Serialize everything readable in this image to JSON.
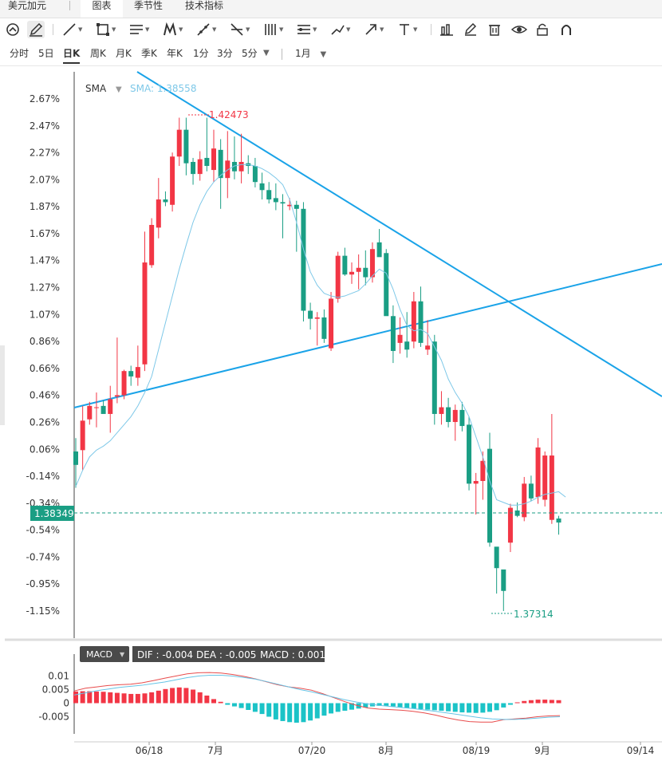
{
  "top_tabs": [
    "美元加元",
    "图表",
    "季节性",
    "技术指标"
  ],
  "periods": [
    "分时",
    "5日",
    "日K",
    "周K",
    "月K",
    "季K",
    "年K",
    "1分",
    "3分",
    "5分"
  ],
  "period_range": "1月",
  "sma": {
    "name": "SMA",
    "value_label": "SMA: 1.38558"
  },
  "macd": {
    "name": "MACD",
    "dif_label": "DIF : -0.004",
    "dea_label": "DEA : -0.005",
    "macd_label": "MACD : 0.001"
  },
  "colors": {
    "up": "#f23645",
    "down": "#1a9e84",
    "sma": "#7ec8e8",
    "trendline": "#1aa3e8",
    "dif": "#e84c4c",
    "dea": "#66c4e6",
    "current": "#1a9e84"
  },
  "chart_data": {
    "type": "candlestick",
    "y_axis": {
      "labels": [
        "2.67%",
        "2.47%",
        "2.27%",
        "2.07%",
        "1.87%",
        "1.67%",
        "1.47%",
        "1.27%",
        "1.07%",
        "0.86%",
        "0.66%",
        "0.46%",
        "0.26%",
        "0.06%",
        "-0.14%",
        "-0.34%",
        "-0.54%",
        "-0.74%",
        "-0.95%",
        "-1.15%"
      ],
      "min_pct": -1.15,
      "max_pct": 2.67,
      "base_price": 1.3604
    },
    "x_axis": {
      "labels": [
        "06/18",
        "7月",
        "07/20",
        "8月",
        "08/19",
        "9月",
        "09/14"
      ]
    },
    "current_price": "1.38349",
    "max_marker": {
      "label": "1.42473"
    },
    "min_marker": {
      "label": "1.37314"
    },
    "candles_pct": [
      {
        "o": 0.04,
        "h": 0.14,
        "l": -0.23,
        "c": -0.06
      },
      {
        "o": 0.05,
        "h": 0.38,
        "l": -0.1,
        "c": 0.27
      },
      {
        "o": 0.28,
        "h": 0.41,
        "l": 0.24,
        "c": 0.38
      },
      {
        "o": 0.37,
        "h": 0.48,
        "l": 0.22,
        "c": 0.37
      },
      {
        "o": 0.38,
        "h": 0.42,
        "l": 0.33,
        "c": 0.32
      },
      {
        "o": 0.32,
        "h": 0.53,
        "l": 0.18,
        "c": 0.43
      },
      {
        "o": 0.45,
        "h": 0.89,
        "l": 0.4,
        "c": 0.46
      },
      {
        "o": 0.46,
        "h": 0.65,
        "l": 0.43,
        "c": 0.64
      },
      {
        "o": 0.64,
        "h": 0.68,
        "l": 0.53,
        "c": 0.6
      },
      {
        "o": 0.59,
        "h": 0.83,
        "l": 0.53,
        "c": 0.67
      },
      {
        "o": 0.69,
        "h": 1.68,
        "l": 0.64,
        "c": 1.45
      },
      {
        "o": 1.43,
        "h": 1.78,
        "l": 1.41,
        "c": 1.73
      },
      {
        "o": 1.71,
        "h": 2.08,
        "l": 1.63,
        "c": 1.92
      },
      {
        "o": 1.92,
        "h": 1.98,
        "l": 1.87,
        "c": 1.9
      },
      {
        "o": 1.88,
        "h": 2.27,
        "l": 1.83,
        "c": 2.24
      },
      {
        "o": 2.24,
        "h": 2.53,
        "l": 2.17,
        "c": 2.44
      },
      {
        "o": 2.44,
        "h": 2.53,
        "l": 2.1,
        "c": 2.19
      },
      {
        "o": 2.2,
        "h": 2.23,
        "l": 2.03,
        "c": 2.11
      },
      {
        "o": 2.11,
        "h": 2.28,
        "l": 2.06,
        "c": 2.22
      },
      {
        "o": 2.23,
        "h": 2.53,
        "l": 2.13,
        "c": 2.17
      },
      {
        "o": 2.14,
        "h": 2.44,
        "l": 2.05,
        "c": 2.3
      },
      {
        "o": 2.29,
        "h": 2.37,
        "l": 1.85,
        "c": 2.08
      },
      {
        "o": 2.08,
        "h": 2.43,
        "l": 1.93,
        "c": 2.21
      },
      {
        "o": 2.2,
        "h": 2.39,
        "l": 2.07,
        "c": 2.13
      },
      {
        "o": 2.13,
        "h": 2.41,
        "l": 2.04,
        "c": 2.2
      },
      {
        "o": 2.19,
        "h": 2.25,
        "l": 2.11,
        "c": 2.17
      },
      {
        "o": 2.17,
        "h": 2.23,
        "l": 2.01,
        "c": 2.05
      },
      {
        "o": 2.04,
        "h": 2.12,
        "l": 1.92,
        "c": 1.99
      },
      {
        "o": 1.99,
        "h": 2.05,
        "l": 1.89,
        "c": 1.92
      },
      {
        "o": 1.93,
        "h": 2.04,
        "l": 1.84,
        "c": 1.9
      },
      {
        "o": 1.9,
        "h": 1.96,
        "l": 1.63,
        "c": 1.89
      },
      {
        "o": 1.87,
        "h": 1.93,
        "l": 1.84,
        "c": 1.88
      },
      {
        "o": 1.88,
        "h": 1.91,
        "l": 1.53,
        "c": 1.85
      },
      {
        "o": 1.85,
        "h": 1.9,
        "l": 1.01,
        "c": 1.09
      },
      {
        "o": 1.09,
        "h": 1.15,
        "l": 0.95,
        "c": 1.03
      },
      {
        "o": 1.03,
        "h": 1.08,
        "l": 0.83,
        "c": 1.04
      },
      {
        "o": 1.04,
        "h": 1.1,
        "l": 0.85,
        "c": 0.88
      },
      {
        "o": 0.81,
        "h": 1.23,
        "l": 0.79,
        "c": 1.18
      },
      {
        "o": 1.18,
        "h": 1.53,
        "l": 1.15,
        "c": 1.5
      },
      {
        "o": 1.5,
        "h": 1.56,
        "l": 1.35,
        "c": 1.36
      },
      {
        "o": 1.36,
        "h": 1.45,
        "l": 1.29,
        "c": 1.38
      },
      {
        "o": 1.38,
        "h": 1.51,
        "l": 1.25,
        "c": 1.41
      },
      {
        "o": 1.41,
        "h": 1.54,
        "l": 1.28,
        "c": 1.34
      },
      {
        "o": 1.34,
        "h": 1.6,
        "l": 1.3,
        "c": 1.55
      },
      {
        "o": 1.6,
        "h": 1.7,
        "l": 1.51,
        "c": 1.49
      },
      {
        "o": 1.52,
        "h": 1.55,
        "l": 1.37,
        "c": 1.05
      },
      {
        "o": 1.05,
        "h": 1.13,
        "l": 0.7,
        "c": 0.79
      },
      {
        "o": 0.85,
        "h": 1.04,
        "l": 0.77,
        "c": 0.91
      },
      {
        "o": 0.86,
        "h": 1.08,
        "l": 0.74,
        "c": 0.8
      },
      {
        "o": 0.86,
        "h": 1.23,
        "l": 0.81,
        "c": 1.16
      },
      {
        "o": 1.16,
        "h": 1.27,
        "l": 0.82,
        "c": 0.85
      },
      {
        "o": 0.8,
        "h": 1.02,
        "l": 0.76,
        "c": 0.83
      },
      {
        "o": 0.86,
        "h": 0.91,
        "l": 0.24,
        "c": 0.32
      },
      {
        "o": 0.32,
        "h": 0.49,
        "l": 0.24,
        "c": 0.37
      },
      {
        "o": 0.37,
        "h": 0.44,
        "l": 0.22,
        "c": 0.26
      },
      {
        "o": 0.26,
        "h": 0.39,
        "l": 0.12,
        "c": 0.35
      },
      {
        "o": 0.35,
        "h": 0.41,
        "l": 0.19,
        "c": 0.23
      },
      {
        "o": 0.24,
        "h": 0.3,
        "l": -0.25,
        "c": -0.2
      },
      {
        "o": -0.2,
        "h": -0.12,
        "l": -0.43,
        "c": -0.18
      },
      {
        "o": -0.18,
        "h": 0.04,
        "l": -0.32,
        "c": -0.03
      },
      {
        "o": 0.06,
        "h": 0.18,
        "l": -0.67,
        "c": -0.64
      },
      {
        "o": -0.67,
        "h": -0.68,
        "l": -1.02,
        "c": -0.83
      },
      {
        "o": -0.84,
        "h": -0.85,
        "l": -1.15,
        "c": -1.0
      },
      {
        "o": -0.64,
        "h": -0.35,
        "l": -0.71,
        "c": -0.38
      },
      {
        "o": -0.4,
        "h": -0.34,
        "l": -0.45,
        "c": -0.44
      },
      {
        "o": -0.45,
        "h": -0.15,
        "l": -0.48,
        "c": -0.2
      },
      {
        "o": -0.2,
        "h": -0.14,
        "l": -0.33,
        "c": -0.31
      },
      {
        "o": -0.3,
        "h": 0.14,
        "l": -0.35,
        "c": 0.07
      },
      {
        "o": -0.32,
        "h": 0.04,
        "l": -0.37,
        "c": 0.01
      },
      {
        "o": -0.47,
        "h": 0.32,
        "l": -0.5,
        "c": 0.01
      },
      {
        "o": -0.46,
        "h": -0.44,
        "l": -0.58,
        "c": -0.49
      }
    ],
    "sma_pct": [
      -0.22,
      -0.1,
      0.0,
      0.05,
      0.08,
      0.12,
      0.18,
      0.24,
      0.3,
      0.38,
      0.48,
      0.6,
      0.8,
      1.0,
      1.2,
      1.4,
      1.58,
      1.75,
      1.88,
      1.98,
      2.05,
      2.1,
      2.14,
      2.17,
      2.18,
      2.18,
      2.17,
      2.15,
      2.12,
      2.08,
      2.03,
      1.92,
      1.75,
      1.55,
      1.38,
      1.28,
      1.22,
      1.2,
      1.19,
      1.2,
      1.22,
      1.24,
      1.29,
      1.35,
      1.4,
      1.37,
      1.25,
      1.1,
      0.98,
      0.94,
      0.95,
      0.92,
      0.82,
      0.72,
      0.58,
      0.48,
      0.4,
      0.3,
      0.15,
      0.0,
      -0.18,
      -0.32,
      -0.34,
      -0.36,
      -0.36,
      -0.35,
      -0.33,
      -0.3,
      -0.28,
      -0.27,
      -0.26,
      -0.3
    ],
    "macd_hist": [
      0.0043,
      0.0044,
      0.0044,
      0.0043,
      0.0042,
      0.004,
      0.0038,
      0.0036,
      0.0034,
      0.0034,
      0.0036,
      0.004,
      0.0046,
      0.0052,
      0.0056,
      0.0058,
      0.0056,
      0.005,
      0.004,
      0.0028,
      0.0015,
      0.0005,
      -0.0006,
      -0.0012,
      -0.0018,
      -0.0025,
      -0.0032,
      -0.004,
      -0.005,
      -0.006,
      -0.0066,
      -0.007,
      -0.0072,
      -0.007,
      -0.0064,
      -0.0056,
      -0.0046,
      -0.0038,
      -0.0032,
      -0.0028,
      -0.0024,
      -0.002,
      -0.0016,
      -0.0012,
      -0.001,
      -0.001,
      -0.0012,
      -0.0015,
      -0.0018,
      -0.002,
      -0.0022,
      -0.0024,
      -0.0026,
      -0.0028,
      -0.003,
      -0.0032,
      -0.0034,
      -0.0035,
      -0.0036,
      -0.0035,
      -0.0032,
      -0.0026,
      -0.0016,
      -0.0006,
      0.0003,
      0.0008,
      0.0011,
      0.0013,
      0.0013,
      0.0012,
      0.0011
    ],
    "dif": [
      0.0045,
      0.0055,
      0.006,
      0.0065,
      0.0068,
      0.007,
      0.0075,
      0.0083,
      0.0092,
      0.01,
      0.0108,
      0.0112,
      0.0113,
      0.0111,
      0.0106,
      0.0099,
      0.009,
      0.0079,
      0.0068,
      0.006,
      0.0055,
      0.0048,
      0.0035,
      0.002,
      0.0005,
      -0.0008,
      -0.0018,
      -0.0022,
      -0.0024,
      -0.0026,
      -0.003,
      -0.0036,
      -0.0044,
      -0.0054,
      -0.0062,
      -0.0068,
      -0.007,
      -0.007,
      -0.0061,
      -0.0058,
      -0.0055,
      -0.005,
      -0.0047,
      -0.0046
    ],
    "dea": [
      0.003,
      0.0038,
      0.0046,
      0.0052,
      0.0058,
      0.0062,
      0.0066,
      0.0072,
      0.0078,
      0.0086,
      0.0094,
      0.01,
      0.0103,
      0.0103,
      0.01,
      0.0095,
      0.0089,
      0.008,
      0.007,
      0.006,
      0.005,
      0.0042,
      0.0032,
      0.0022,
      0.0012,
      0.0004,
      -0.0003,
      -0.0008,
      -0.0012,
      -0.0016,
      -0.002,
      -0.0025,
      -0.003,
      -0.0036,
      -0.0042,
      -0.0048,
      -0.0054,
      -0.0058,
      -0.006,
      -0.006,
      -0.0058,
      -0.0055,
      -0.0052,
      -0.005
    ],
    "macd_axis": {
      "labels": [
        "0.01",
        "0.005",
        "0",
        "-0.005"
      ],
      "min": -0.0075,
      "max": 0.0125
    }
  }
}
